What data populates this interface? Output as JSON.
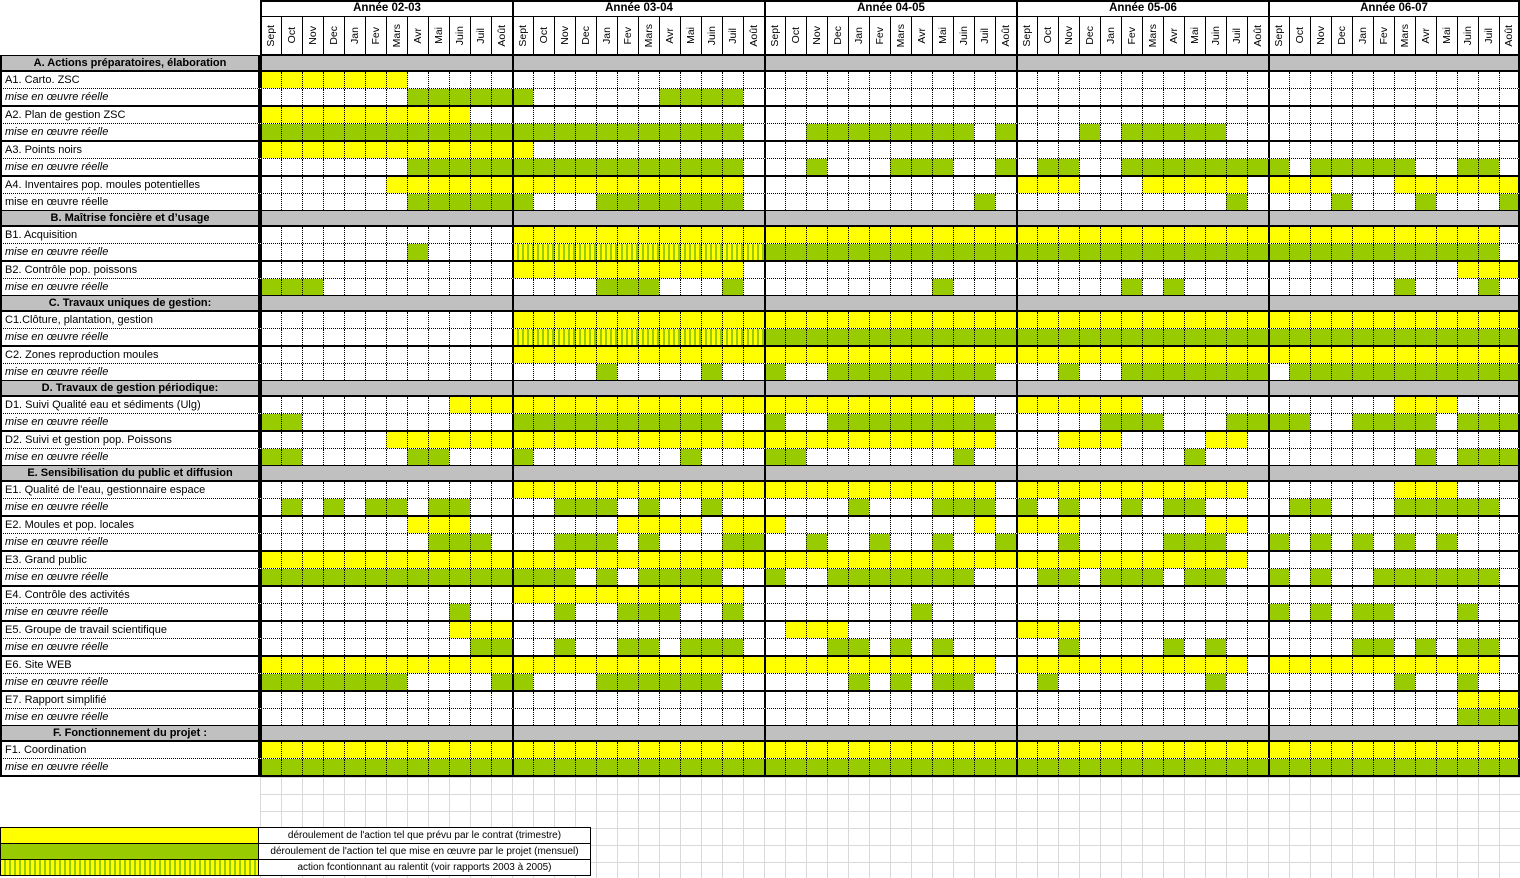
{
  "colors": {
    "planned": "#ffff00",
    "implemented": "#99cc00",
    "slowed_stripes": [
      "#ffff00",
      "#99cc00"
    ],
    "section_bg": "#c0c0c0",
    "grid_faint": "#d9d9d9"
  },
  "chart_data": {
    "type": "table",
    "subtype": "gantt-project-timetable",
    "years": [
      "Année 02-03",
      "Année 03-04",
      "Année 04-05",
      "Année 05-06",
      "Année 06-07"
    ],
    "months": [
      "Sept",
      "Oct",
      "Nov",
      "Dec",
      "Jan",
      "Fev",
      "Mars",
      "Avr",
      "Mai",
      "Juin",
      "Juil",
      "Août"
    ],
    "cell_encoding": {
      ".": "empty",
      "Y": "planned by contract (yellow)",
      "G": "actual implementation (green)",
      "S": "action running slowly (yellow/green stripes)"
    },
    "rows": [
      {
        "type": "section",
        "label": "A. Actions préparatoires, élaboration"
      },
      {
        "type": "plan",
        "label": "A1. Carto. ZSC",
        "cells": "YYYYYYY.....|............|............|............|............"
      },
      {
        "type": "real",
        "label": "mise en œuvre réelle",
        "cells": ".......GGGGG|G......GGGG.|............|............|............"
      },
      {
        "type": "plan",
        "label": "A2. Plan de gestion ZSC",
        "cells": "YYYYYYYYYY..|............|............|............|............"
      },
      {
        "type": "real",
        "label": "mise en œuvre réelle",
        "cells": "GGGGGGGGGGGG|GGGGGGGGGGG.|..GGGGGGGG.G|...G.GGGGG..|............"
      },
      {
        "type": "plan",
        "label": "A3. Points noirs",
        "cells": "YYYYYYYYYYYY|Y...........|............|............|............"
      },
      {
        "type": "real",
        "label": "mise en œuvre réelle",
        "cells": ".......GGGGG|GGGGGGGGGGG.|..G...GGG..G|.GG..GGGGGGG|G.GGGGG..GG."
      },
      {
        "type": "plan",
        "label": "A4. Inventaires pop. moules potentielles",
        "cells": "......YYYYYY|YYYYYYYYYYY.|............|YYY...YYYYY.|YYY...YYYYYY"
      },
      {
        "type": "real",
        "label": "mise en œuvre réelle",
        "upright": true,
        "cells": ".......GGGGG|G...GGGGGGG.|..........G.|..........G.|...G...G...G"
      },
      {
        "type": "section",
        "label": "B. Maîtrise foncière et d’usage"
      },
      {
        "type": "plan",
        "label": "B1. Acquisition",
        "cells": "............|YYYYYYYYYYYY|YYYYYYYYYYYY|YYYYYYYYYYYY|YYYYYYYYYYY."
      },
      {
        "type": "real",
        "label": "mise en œuvre réelle",
        "cells": ".......G....|SSSSSSSSSSSS|GGGGGGGGGGGG|GGGGGGGGGGGG|GGGGGGGGGGG."
      },
      {
        "type": "plan",
        "label": "B2. Contrôle pop. poissons",
        "cells": "............|YYYYYYYYYYY.|............|............|.........YYY"
      },
      {
        "type": "real",
        "label": "mise en œuvre réelle",
        "cells": "GGG.........|....GGG...G.|........G...|.....G.G....|......G...G."
      },
      {
        "type": "section",
        "label": "C. Travaux uniques de gestion:"
      },
      {
        "type": "plan",
        "label": "C1.Clôture, plantation, gestion",
        "cells": "............|YYYYYYYYYYYY|YYYYYYYYYYYY|YYYYYYYYYYYY|YYYYYYYYYYYY"
      },
      {
        "type": "real",
        "label": "mise en œuvre réelle",
        "cells": "............|SSSSSSSSSSSS|GGGGGGGGGGGG|GGGGGGGGGGGG|GGGGGGGGGGGG"
      },
      {
        "type": "plan",
        "label": "C2. Zones reproduction moules",
        "cells": "............|YYYYYYYYYYYY|YYYYYYYYYYYY|YYYYYYYYYYYY|YYYYYYYYYYYY"
      },
      {
        "type": "real",
        "label": "mise en œuvre réelle",
        "cells": "............|....G....G..|G..GGGGGGGG.|..G..GGGGGGG|.GGGGGGGGGGG"
      },
      {
        "type": "section",
        "label": "D. Travaux de gestion périodique:"
      },
      {
        "type": "plan",
        "label": "D1. Suivi Qualité eau et sédiments (Ulg)",
        "cells": ".........YYY|YYYYYYYYYYYY|YYYYYYYYYY..|YYYYYY......|......YYY..."
      },
      {
        "type": "real",
        "label": "mise en œuvre réelle",
        "cells": "GG..........|GGGGGGGGGG..|G..GGGGGGGG.|....GGG...GG|GG..GGGG.GGG"
      },
      {
        "type": "plan",
        "label": "D2. Suivi et gestion pop. Poissons",
        "cells": "......YYYYYY|YYYYYYYYYYYY|YYYYYYYYYYY.|..YYY....YY.|............"
      },
      {
        "type": "real",
        "label": "mise en œuvre réelle",
        "cells": "GG.....GG...|G.......G...|GG.......G..|........G...|.......G.GGG"
      },
      {
        "type": "section",
        "label": "E. Sensibilisation du public et diffusion"
      },
      {
        "type": "plan",
        "label": "E1. Qualité de l'eau, gestionnaire espace",
        "cells": "............|YYYYYYYYYYYY|YYYYYYYYYYY.|YYYYYYYYYYY.|......YYY..."
      },
      {
        "type": "real",
        "label": "mise en œuvre réelle",
        "cells": ".G.G.GG.GG..|..GGG.G..G..|....G...GGG.|G.G..G.GG...|.GG...GGGGG."
      },
      {
        "type": "plan",
        "label": "E2. Moules et pop. locales",
        "cells": ".......YYY..|.....YYYY.YY|Y.........Y.|YYY......YY.|............"
      },
      {
        "type": "real",
        "label": "mise en œuvre réelle",
        "cells": "........GGG.|..GGG.G...GG|..G..G..G..G|..G....GGG..|G.G.G.G.G..."
      },
      {
        "type": "plan",
        "label": "E3. Grand public",
        "cells": "YYYYYYYYYYYY|YYYYYYYYYYYY|YYYYYYYYYYYY|YYYYYYYYYYY.|............"
      },
      {
        "type": "real",
        "label": "mise en œuvre réelle",
        "cells": "GGGGGGGGGGGG|GGG.G.GGGG..|G..GGGGGGG..|.GG.GGG.GG..|G.G..GGGGGG."
      },
      {
        "type": "plan",
        "label": "E4. Contrôle des activités",
        "cells": "............|YYYYYYYYYYY.|............|............|............"
      },
      {
        "type": "real",
        "label": "mise en œuvre réelle",
        "cells": ".........G..|..G..GGG..G.|.......G....|............|G.G.GG...G.."
      },
      {
        "type": "plan",
        "label": "E5.  Groupe de travail scientifique",
        "cells": ".........YYY|............|.YYY........|YYY.........|............"
      },
      {
        "type": "real",
        "label": "mise en œuvre réelle",
        "cells": "..........GG|..G..GG.GGG.|...GG.G.G...|..G....G.G..|....GG.G.GG."
      },
      {
        "type": "plan",
        "label": "E6. Site WEB",
        "cells": "YYYYYYYYYYYY|YYYYYYYYYYYY|YYYYYYYYYYY.|YYYYYYYYYYY.|YYYYYYYYYYY."
      },
      {
        "type": "real",
        "label": "mise en œuvre réelle",
        "cells": "GGGGGGG....G|G...GGGGGG..|....G.G.GG..|.G.......G..|......G..G.."
      },
      {
        "type": "plan",
        "label": "E7. Rapport simplifié",
        "cells": "............|............|............|............|.........YYY"
      },
      {
        "type": "real",
        "label": "mise en œuvre réelle",
        "cells": "............|............|............|............|.........GGG"
      },
      {
        "type": "section",
        "label": "F. Fonctionnement du projet :"
      },
      {
        "type": "plan",
        "label": "F1.  Coordination",
        "cells": "YYYYYYYYYYYY|YYYYYYYYYYYY|YYYYYYYYYYYY|YYYYYYYYYYYY|YYYYYYYYYYYY"
      },
      {
        "type": "real",
        "label": "mise en œuvre réelle",
        "cells": "GGGGGGGGGGGG|GGGGGGGGGGGG|GGGGGGGGGGGG|GGGGGGGGGGGG|GGGGGGGGGGGG"
      }
    ],
    "legend": [
      {
        "swatch": "planned",
        "text": "déroulement de l'action tel que prévu par le contrat (trimestre)"
      },
      {
        "swatch": "actual",
        "text": "déroulement de l'action tel que mise en œuvre par le projet (mensuel)"
      },
      {
        "swatch": "slow",
        "text": "action fcontionnant au ralentit (voir rapports 2003 à 2005)"
      }
    ]
  }
}
